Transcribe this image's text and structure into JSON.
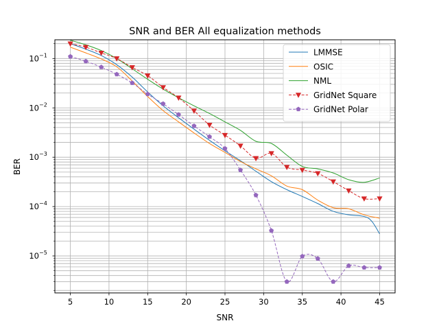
{
  "chart_data": {
    "type": "line",
    "title": "SNR and BER All equalization methods",
    "xlabel": "SNR",
    "ylabel": "BER",
    "xlim": [
      3,
      47
    ],
    "ylim_log10": [
      -5.75,
      -0.62
    ],
    "y_scale": "log",
    "grid": true,
    "legend_position": "top-right",
    "x_ticks": [
      5,
      10,
      15,
      20,
      25,
      30,
      35,
      40,
      45
    ],
    "y_major_ticks": [
      {
        "exp": -5,
        "label": "10",
        "sup": "−5"
      },
      {
        "exp": -4,
        "label": "10",
        "sup": "−4"
      },
      {
        "exp": -3,
        "label": "10",
        "sup": "−3"
      },
      {
        "exp": -2,
        "label": "10",
        "sup": "−2"
      },
      {
        "exp": -1,
        "label": "10",
        "sup": "−1"
      }
    ],
    "series": [
      {
        "name": "LMMSE",
        "color": "#1f77b4",
        "style": "solid",
        "marker": "none",
        "x": [
          5,
          7,
          9,
          11,
          13,
          15,
          17,
          19,
          21,
          23,
          25,
          27,
          29,
          31,
          33,
          35,
          37,
          39,
          41,
          43,
          44,
          45
        ],
        "y": [
          0.2,
          0.155,
          0.115,
          0.075,
          0.042,
          0.021,
          0.011,
          0.0063,
          0.0037,
          0.0022,
          0.00135,
          0.00085,
          0.00052,
          0.00032,
          0.00022,
          0.00016,
          0.000115,
          8e-05,
          6.8e-05,
          6.3e-05,
          5e-05,
          2.8e-05
        ]
      },
      {
        "name": "OSIC",
        "color": "#ff7f0e",
        "style": "solid",
        "marker": "none",
        "x": [
          5,
          7,
          9,
          11,
          13,
          15,
          17,
          19,
          21,
          23,
          25,
          27,
          29,
          31,
          33,
          35,
          37,
          39,
          41,
          43,
          45
        ],
        "y": [
          0.17,
          0.13,
          0.098,
          0.068,
          0.035,
          0.017,
          0.0088,
          0.0052,
          0.0031,
          0.0019,
          0.00125,
          0.00082,
          0.00058,
          0.00042,
          0.00026,
          0.00022,
          0.000135,
          9.5e-05,
          9e-05,
          6.8e-05,
          5.8e-05
        ]
      },
      {
        "name": "NML",
        "color": "#2ca02c",
        "style": "solid",
        "marker": "none",
        "x": [
          5,
          7,
          9,
          11,
          13,
          15,
          17,
          19,
          21,
          23,
          25,
          27,
          29,
          31,
          33,
          35,
          37,
          39,
          41,
          43,
          45
        ],
        "y": [
          0.235,
          0.19,
          0.145,
          0.1,
          0.062,
          0.038,
          0.024,
          0.016,
          0.011,
          0.0077,
          0.0052,
          0.0035,
          0.0021,
          0.0019,
          0.0011,
          0.00065,
          0.00058,
          0.00048,
          0.00035,
          0.00031,
          0.00038
        ]
      },
      {
        "name": "GridNet Square",
        "color": "#d62728",
        "style": "dashed",
        "marker": "triangle-down",
        "x": [
          5,
          7,
          9,
          11,
          13,
          15,
          17,
          19,
          21,
          23,
          25,
          27,
          29,
          31,
          33,
          35,
          37,
          39,
          41,
          43,
          45
        ],
        "y": [
          0.2,
          0.17,
          0.13,
          0.1,
          0.066,
          0.045,
          0.026,
          0.016,
          0.0087,
          0.0045,
          0.0028,
          0.0017,
          0.00095,
          0.0012,
          0.00063,
          0.00055,
          0.00047,
          0.00032,
          0.00021,
          0.000145,
          0.000145
        ]
      },
      {
        "name": "GridNet Polar",
        "color": "#9467bd",
        "style": "dashed",
        "marker": "pentagon",
        "x": [
          5,
          7,
          9,
          11,
          13,
          15,
          17,
          19,
          21,
          23,
          25,
          27,
          29,
          31,
          33,
          35,
          37,
          39,
          41,
          43,
          45
        ],
        "y": [
          0.11,
          0.088,
          0.067,
          0.048,
          0.032,
          0.019,
          0.0121,
          0.0073,
          0.0043,
          0.0026,
          0.0015,
          0.00055,
          0.00017,
          3.25e-05,
          3e-06,
          9.8e-06,
          8.8e-06,
          3e-06,
          6.3e-06,
          5.8e-06,
          5.8e-06
        ]
      }
    ]
  }
}
